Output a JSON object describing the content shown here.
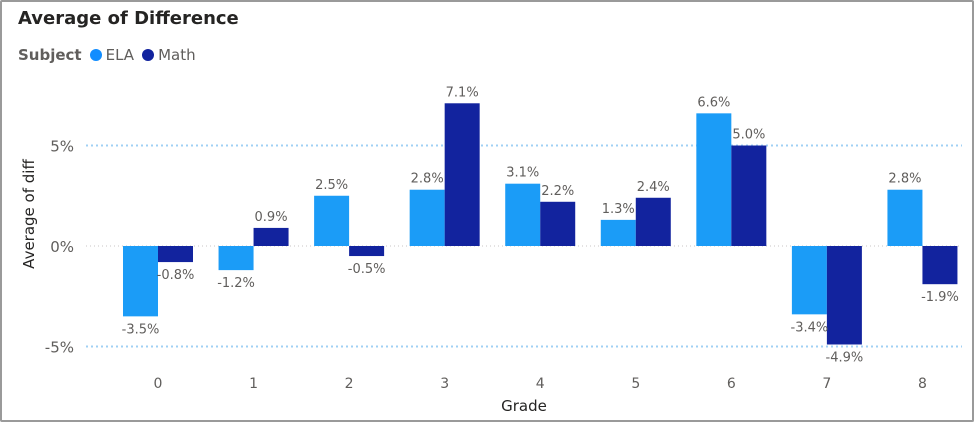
{
  "title": "Average of Difference",
  "legend": {
    "title": "Subject",
    "items": [
      {
        "name": "ELA",
        "color": "#118dff"
      },
      {
        "name": "Math",
        "color": "#12239e"
      }
    ]
  },
  "colors": {
    "ela": "#1b9cf7",
    "math": "#12239e",
    "gridline": "#a0d0f4",
    "text": "#605e5c"
  },
  "chart_data": {
    "type": "bar",
    "title": "Average of Difference",
    "xlabel": "Grade",
    "ylabel": "Average of diff",
    "categories": [
      "0",
      "1",
      "2",
      "3",
      "4",
      "5",
      "6",
      "7",
      "8"
    ],
    "series": [
      {
        "name": "ELA",
        "values": [
          -3.5,
          -1.2,
          2.5,
          2.8,
          3.1,
          1.3,
          6.6,
          -3.4,
          2.8
        ]
      },
      {
        "name": "Math",
        "values": [
          -0.8,
          0.9,
          -0.5,
          7.1,
          2.2,
          2.4,
          5.0,
          -4.9,
          -1.9
        ]
      }
    ],
    "data_labels": {
      "ELA": [
        "-3.5%",
        "-1.2%",
        "2.5%",
        "2.8%",
        "3.1%",
        "1.3%",
        "6.6%",
        "-3.4%",
        "2.8%"
      ],
      "Math": [
        "-0.8%",
        "0.9%",
        "-0.5%",
        "7.1%",
        "2.2%",
        "2.4%",
        "5.0%",
        "-4.9%",
        "-1.9%"
      ]
    },
    "y_ticks": [
      5,
      0,
      -5
    ],
    "y_tick_labels": [
      "5%",
      "0%",
      "-5%"
    ],
    "ylim": [
      -6.2,
      7.9
    ],
    "grid": true,
    "legend_position": "top-left"
  }
}
